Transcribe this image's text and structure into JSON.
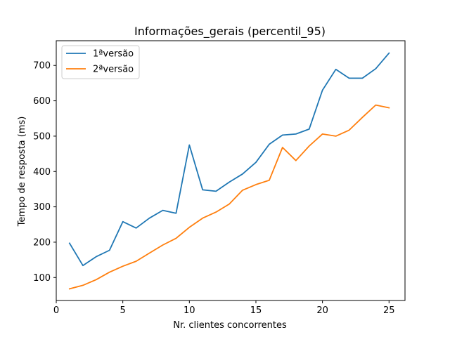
{
  "chart_data": {
    "type": "line",
    "title": "Informações_gerais (percentil_95)",
    "xlabel": "Nr. clientes concorrentes",
    "ylabel": "Tempo de resposta (ms)",
    "xlim": [
      0,
      26.2
    ],
    "ylim": [
      35,
      770
    ],
    "xticks": [
      0,
      5,
      10,
      15,
      20,
      25
    ],
    "yticks": [
      100,
      200,
      300,
      400,
      500,
      600,
      700
    ],
    "grid": false,
    "legend_position": "top-left",
    "x": [
      1,
      2,
      3,
      4,
      5,
      6,
      7,
      8,
      9,
      10,
      11,
      12,
      13,
      14,
      15,
      16,
      17,
      18,
      19,
      20,
      21,
      22,
      23,
      24,
      25
    ],
    "series": [
      {
        "name": "1ªversão",
        "color": "#1f77b4",
        "values": [
          197,
          134,
          159,
          177,
          258,
          240,
          268,
          290,
          282,
          475,
          348,
          344,
          370,
          393,
          426,
          477,
          503,
          506,
          520,
          630,
          689,
          664,
          664,
          691,
          735
        ]
      },
      {
        "name": "2ªversão",
        "color": "#ff7f0e",
        "values": [
          68,
          78,
          94,
          115,
          132,
          146,
          169,
          192,
          211,
          242,
          268,
          285,
          308,
          347,
          363,
          375,
          468,
          431,
          472,
          506,
          500,
          517,
          553,
          588,
          580
        ]
      }
    ]
  }
}
